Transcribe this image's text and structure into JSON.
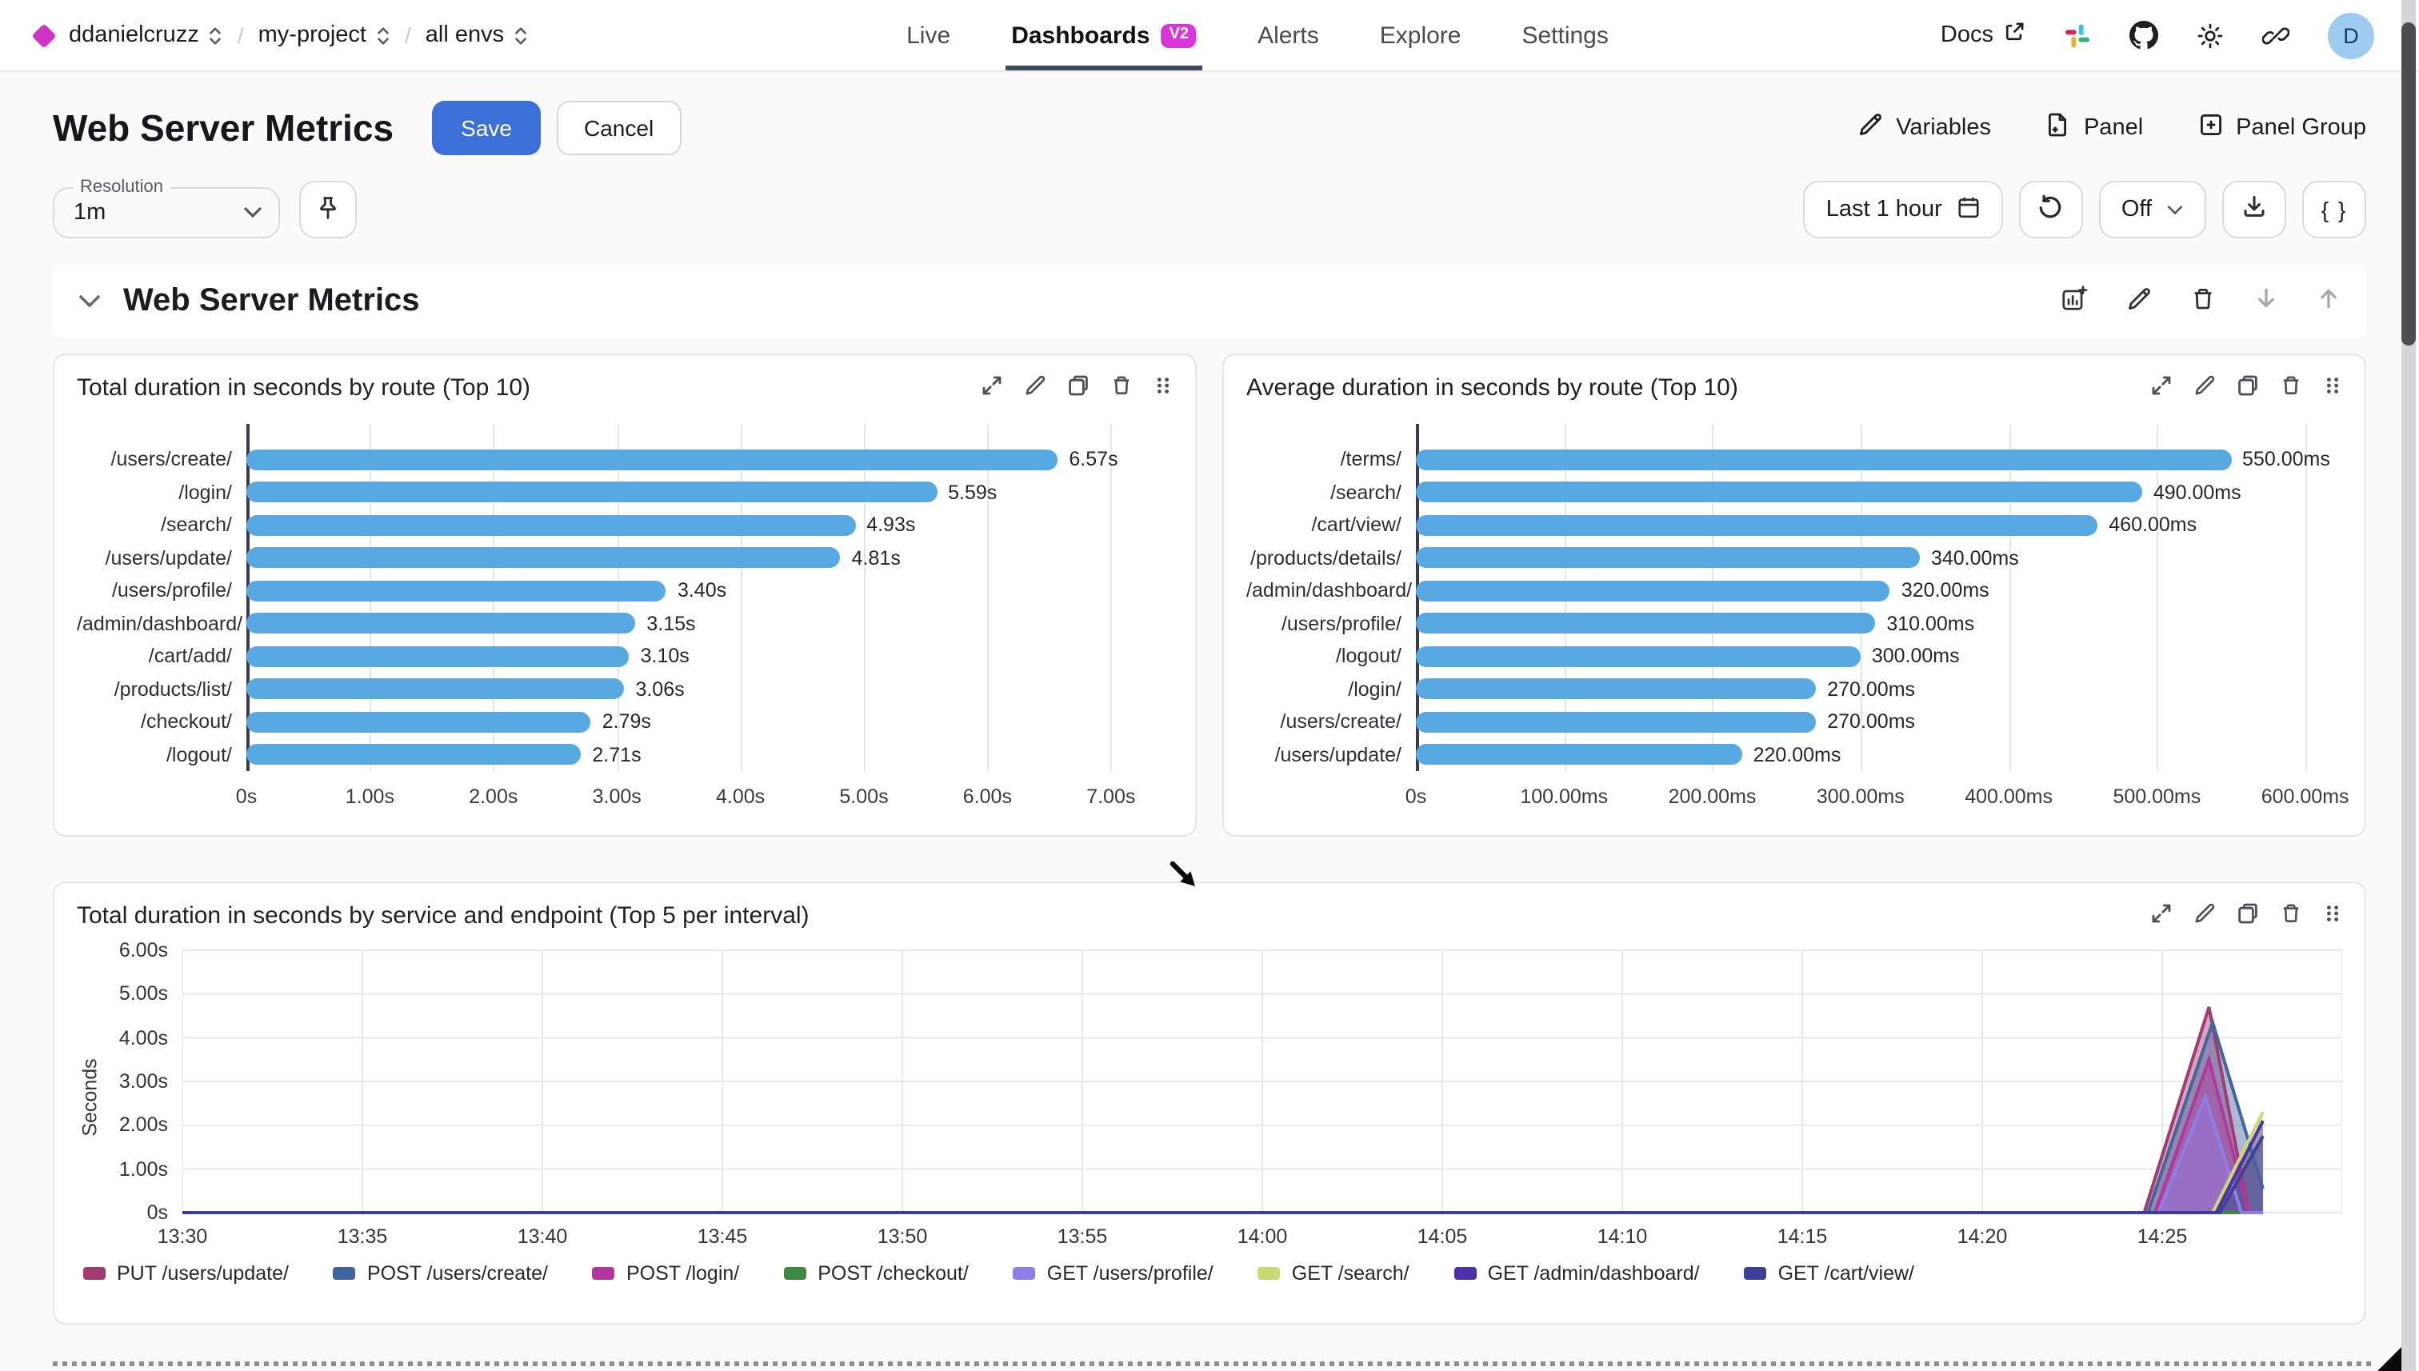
{
  "nav": {
    "breadcrumbs": [
      "ddanielcruzz",
      "my-project",
      "all envs"
    ],
    "tabs": [
      {
        "label": "Live",
        "active": false
      },
      {
        "label": "Dashboards",
        "active": true,
        "badge": "V2"
      },
      {
        "label": "Alerts",
        "active": false
      },
      {
        "label": "Explore",
        "active": false
      },
      {
        "label": "Settings",
        "active": false
      }
    ],
    "docs_label": "Docs",
    "avatar_initial": "D"
  },
  "header": {
    "title": "Web Server Metrics",
    "save_label": "Save",
    "cancel_label": "Cancel",
    "variables_label": "Variables",
    "panel_label": "Panel",
    "panel_group_label": "Panel Group"
  },
  "toolbar": {
    "resolution_label": "Resolution",
    "resolution_value": "1m",
    "time_range_label": "Last 1 hour",
    "auto_refresh_label": "Off",
    "braces_label": "{ }"
  },
  "section": {
    "title": "Web Server Metrics"
  },
  "icons": [
    "diamond-icon",
    "selector-icon",
    "external-link-icon",
    "slack-icon",
    "github-icon",
    "sun-icon",
    "link-icon",
    "pencil-icon",
    "file-plus-icon",
    "square-plus-icon",
    "chevron-down-icon",
    "pin-icon",
    "calendar-icon",
    "refresh-icon",
    "download-icon",
    "chart-plus-icon",
    "trash-icon",
    "arrow-down-icon",
    "arrow-up-icon",
    "expand-icon",
    "copy-icon",
    "grip-icon",
    "mouse-cursor"
  ],
  "accent_colors": {
    "brand_magenta": "#D233C7",
    "save_blue": "#3C70D6",
    "bar_blue": "#58A9E2"
  },
  "chart_data": [
    {
      "type": "bar",
      "orientation": "horizontal",
      "title": "Total duration in seconds by route (Top 10)",
      "categories": [
        "/users/create/",
        "/login/",
        "/search/",
        "/users/update/",
        "/users/profile/",
        "/admin/dashboard/",
        "/cart/add/",
        "/products/list/",
        "/checkout/",
        "/logout/"
      ],
      "values": [
        6.57,
        5.59,
        4.93,
        4.81,
        3.4,
        3.15,
        3.1,
        3.06,
        2.79,
        2.71
      ],
      "value_labels": [
        "6.57s",
        "5.59s",
        "4.93s",
        "4.81s",
        "3.40s",
        "3.15s",
        "3.10s",
        "3.06s",
        "2.79s",
        "2.71s"
      ],
      "xmax": 7.5,
      "x_ticks": [
        {
          "label": "0s",
          "value": 0
        },
        {
          "label": "1.00s",
          "value": 1
        },
        {
          "label": "2.00s",
          "value": 2
        },
        {
          "label": "3.00s",
          "value": 3
        },
        {
          "label": "4.00s",
          "value": 4
        },
        {
          "label": "5.00s",
          "value": 5
        },
        {
          "label": "6.00s",
          "value": 6
        },
        {
          "label": "7.00s",
          "value": 7
        }
      ],
      "bar_color": "#58A9E2",
      "grid": true
    },
    {
      "type": "bar",
      "orientation": "horizontal",
      "title": "Average duration in seconds by route (Top 10)",
      "categories": [
        "/terms/",
        "/search/",
        "/cart/view/",
        "/products/details/",
        "/admin/dashboard/",
        "/users/profile/",
        "/logout/",
        "/login/",
        "/users/create/",
        "/users/update/"
      ],
      "values": [
        550,
        490,
        460,
        340,
        320,
        310,
        300,
        270,
        270,
        220
      ],
      "value_labels": [
        "550.00ms",
        "490.00ms",
        "460.00ms",
        "340.00ms",
        "320.00ms",
        "310.00ms",
        "300.00ms",
        "270.00ms",
        "270.00ms",
        "220.00ms"
      ],
      "xmax": 625,
      "x_ticks": [
        {
          "label": "0s",
          "value": 0
        },
        {
          "label": "100.00ms",
          "value": 100
        },
        {
          "label": "200.00ms",
          "value": 200
        },
        {
          "label": "300.00ms",
          "value": 300
        },
        {
          "label": "400.00ms",
          "value": 400
        },
        {
          "label": "500.00ms",
          "value": 500
        },
        {
          "label": "600.00ms",
          "value": 600
        }
      ],
      "bar_color": "#58A9E2",
      "grid": true
    },
    {
      "type": "area",
      "title": "Total duration in seconds by service and endpoint (Top 5 per interval)",
      "ylabel": "Seconds",
      "ymax": 6,
      "y_ticks": [
        "0s",
        "1.00s",
        "2.00s",
        "3.00s",
        "4.00s",
        "5.00s",
        "6.00s"
      ],
      "x_ticks": [
        "13:30",
        "13:35",
        "13:40",
        "13:45",
        "13:50",
        "13:55",
        "14:00",
        "14:05",
        "14:10",
        "14:15",
        "14:20",
        "14:25"
      ],
      "x_tick_minutes": 5,
      "x_total_minutes": 60,
      "grid": true,
      "legend_position": "bottom",
      "series": [
        {
          "name": "PUT /users/update/",
          "color": "#A23B72",
          "points": [
            [
              0,
              0
            ],
            [
              54.5,
              0
            ],
            [
              56.3,
              4.7
            ],
            [
              57.4,
              0
            ],
            [
              57.8,
              0
            ]
          ]
        },
        {
          "name": "POST /users/create/",
          "color": "#41659E",
          "points": [
            [
              0,
              0
            ],
            [
              54.6,
              0
            ],
            [
              56.4,
              4.35
            ],
            [
              57.8,
              0.55
            ]
          ]
        },
        {
          "name": "POST /login/",
          "color": "#B3369E",
          "points": [
            [
              0,
              0
            ],
            [
              54.8,
              0
            ],
            [
              56.3,
              3.5
            ],
            [
              57.4,
              0
            ],
            [
              57.8,
              0
            ]
          ]
        },
        {
          "name": "POST /checkout/",
          "color": "#3E8A43",
          "points": [
            [
              0,
              0
            ],
            [
              57.8,
              0
            ]
          ]
        },
        {
          "name": "GET /users/profile/",
          "color": "#8F7EE6",
          "points": [
            [
              0,
              0
            ],
            [
              54.9,
              0
            ],
            [
              56.2,
              2.65
            ],
            [
              57.2,
              0
            ],
            [
              57.8,
              0
            ]
          ]
        },
        {
          "name": "GET /search/",
          "color": "#C9DA74",
          "points": [
            [
              0,
              0
            ],
            [
              56.4,
              0
            ],
            [
              57.8,
              2.3
            ]
          ]
        },
        {
          "name": "GET /admin/dashboard/",
          "color": "#4B30A8",
          "points": [
            [
              0,
              0
            ],
            [
              56.5,
              0
            ],
            [
              57.8,
              2.1
            ]
          ]
        },
        {
          "name": "GET /cart/view/",
          "color": "#3E3F97",
          "points": [
            [
              0,
              0
            ],
            [
              56.6,
              0
            ],
            [
              57.8,
              1.75
            ]
          ]
        }
      ]
    }
  ]
}
